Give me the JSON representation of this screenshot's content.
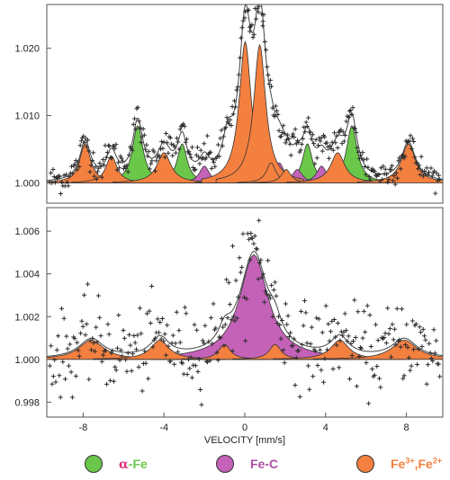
{
  "chart_data": [
    {
      "type": "area",
      "title": "",
      "xlabel": "",
      "ylabel": "",
      "xlim": [
        -9.8,
        9.8
      ],
      "ylim": [
        0.997,
        1.0265
      ],
      "yticks": [
        1.0,
        1.01,
        1.02
      ],
      "ytick_labels": [
        "1.000",
        "1.010",
        "1.020"
      ],
      "grid": false,
      "components": [
        {
          "phase": "alpha-Fe",
          "color": "#6ac74a",
          "peaks": [
            {
              "center": -5.3,
              "amplitude": 0.0085,
              "width": 0.32
            },
            {
              "center": -3.1,
              "amplitude": 0.0058,
              "width": 0.3
            },
            {
              "center": -0.9,
              "amplitude": 0.002,
              "width": 0.28
            },
            {
              "center": 0.9,
              "amplitude": 0.002,
              "width": 0.28
            },
            {
              "center": 3.1,
              "amplitude": 0.0058,
              "width": 0.3
            },
            {
              "center": 5.3,
              "amplitude": 0.0085,
              "width": 0.32
            }
          ]
        },
        {
          "phase": "Fe-C",
          "color": "#c462b8",
          "peaks": [
            {
              "center": -2.0,
              "amplitude": 0.0025,
              "width": 0.3
            },
            {
              "center": 1.7,
              "amplitude": 0.003,
              "width": 0.3
            },
            {
              "center": 2.6,
              "amplitude": 0.002,
              "width": 0.3
            },
            {
              "center": 3.8,
              "amplitude": 0.0025,
              "width": 0.3
            }
          ]
        },
        {
          "phase": "Fe3+,Fe2+",
          "color": "#f48040",
          "peaks": [
            {
              "center": -7.9,
              "amplitude": 0.0058,
              "width": 0.33
            },
            {
              "center": -6.6,
              "amplitude": 0.004,
              "width": 0.33
            },
            {
              "center": -4.0,
              "amplitude": 0.0045,
              "width": 0.42
            },
            {
              "center": -0.8,
              "amplitude": 0.0028,
              "width": 0.28
            },
            {
              "center": 0.02,
              "amplitude": 0.021,
              "width": 0.36
            },
            {
              "center": 0.74,
              "amplitude": 0.0205,
              "width": 0.36
            },
            {
              "center": 1.3,
              "amplitude": 0.003,
              "width": 0.28
            },
            {
              "center": 2.05,
              "amplitude": 0.002,
              "width": 0.28
            },
            {
              "center": 4.6,
              "amplitude": 0.0045,
              "width": 0.42
            },
            {
              "center": 8.1,
              "amplitude": 0.0058,
              "width": 0.42
            }
          ]
        }
      ]
    },
    {
      "type": "area",
      "title": "",
      "xlabel": "VELOCITY [mm/s]",
      "ylabel": "",
      "xlim": [
        -9.8,
        9.8
      ],
      "ylim": [
        0.9973,
        1.0071
      ],
      "xticks": [
        -8,
        -4,
        0,
        4,
        8
      ],
      "xtick_labels": [
        "-8",
        "-4",
        "0",
        "4",
        "8"
      ],
      "yticks": [
        0.998,
        1.0,
        1.002,
        1.004,
        1.006
      ],
      "ytick_labels": [
        "0.998",
        "1.000",
        "1.002",
        "1.004",
        "1.006"
      ],
      "grid": false,
      "components": [
        {
          "phase": "Fe-C",
          "color": "#c462b8",
          "peaks": [
            {
              "center": 0.45,
              "amplitude": 0.0049,
              "width": 0.85
            }
          ]
        },
        {
          "phase": "Fe3+,Fe2+",
          "color": "#f48040",
          "peaks": [
            {
              "center": -7.6,
              "amplitude": 0.0009,
              "width": 0.75
            },
            {
              "center": -4.2,
              "amplitude": 0.0009,
              "width": 0.55
            },
            {
              "center": -1.0,
              "amplitude": 0.0007,
              "width": 0.35
            },
            {
              "center": 1.5,
              "amplitude": 0.0007,
              "width": 0.35
            },
            {
              "center": 4.7,
              "amplitude": 0.0009,
              "width": 0.55
            },
            {
              "center": 7.9,
              "amplitude": 0.0009,
              "width": 0.75
            }
          ]
        }
      ]
    }
  ],
  "legend": [
    {
      "color": "#6ac74a",
      "text_html": "<span style=\"color:#e0307e;font-family:'DejaVu Serif',serif\">α</span><span style=\"color:#6ac74a\">-Fe</span>"
    },
    {
      "color": "#c462b8",
      "text_html": "<span style=\"color:#b04fa3\">Fe-C</span>"
    },
    {
      "color": "#f48040",
      "text_html": "<span style=\"color:#f48040\">Fe<sup style=\"font-size:9px\">3+</sup>,Fe<sup style=\"font-size:9px\">2+</sup></span>"
    }
  ],
  "legend_labels": [
    "α-Fe",
    "Fe-C",
    "Fe3+,Fe2+"
  ]
}
